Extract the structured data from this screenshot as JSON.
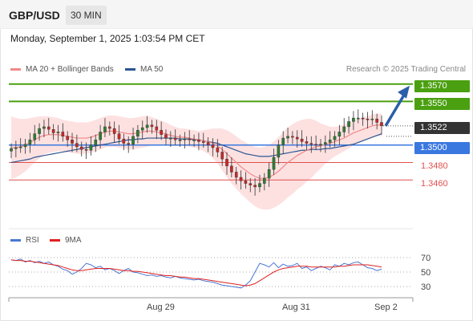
{
  "header": {
    "symbol": "GBP/USD",
    "timeframe": "30 MIN"
  },
  "timestamp": "Monday, September 1, 2025 1:03:54 PM CET",
  "legend": [
    {
      "label": "MA 20 + Bollinger Bands",
      "color": "#f08a8a"
    },
    {
      "label": "MA 50",
      "color": "#2c5691"
    }
  ],
  "credit": "Research © 2025 Trading Central",
  "levels": [
    {
      "value": "1.3570",
      "kind": "resistance",
      "color": "#4aa010"
    },
    {
      "value": "1.3550",
      "kind": "resistance",
      "color": "#4aa010"
    },
    {
      "value": "1.3522",
      "kind": "last",
      "color": "#333333"
    },
    {
      "value": "1.3500",
      "kind": "pivot",
      "color": "#3a78e0"
    },
    {
      "value": "1.3480",
      "kind": "support",
      "color": "#e05050"
    },
    {
      "value": "1.3460",
      "kind": "support",
      "color": "#e05050"
    }
  ],
  "rsi_legend": [
    {
      "label": "RSI",
      "color": "#4a77d4"
    },
    {
      "label": "9MA",
      "color": "#e02020"
    }
  ],
  "rsi_ticks": [
    "70",
    "50",
    "30"
  ],
  "xticks": [
    "Aug 29",
    "Aug 31",
    "Sep 2"
  ],
  "colors": {
    "up": "#2e7d32",
    "down": "#c62828",
    "band": "#fde1e1",
    "ma20": "#f08a8a",
    "ma50": "#2c5691"
  },
  "chart_data": {
    "type": "candlestick",
    "title": "GBP/USD",
    "timeframe": "30 MIN",
    "ylim": [
      1.3405,
      1.3578
    ],
    "close_series": [
      1.3496,
      1.3497,
      1.3498,
      1.3501,
      1.3506,
      1.3513,
      1.3519,
      1.3521,
      1.3518,
      1.3514,
      1.3515,
      1.351,
      1.3506,
      1.3502,
      1.3498,
      1.3495,
      1.3494,
      1.35,
      1.3506,
      1.3515,
      1.3521,
      1.3519,
      1.3513,
      1.3507,
      1.3502,
      1.3501,
      1.351,
      1.3517,
      1.352,
      1.3523,
      1.3521,
      1.3517,
      1.3512,
      1.3508,
      1.3508,
      1.3506,
      1.3506,
      1.3507,
      1.3506,
      1.3506,
      1.3504,
      1.3503,
      1.35,
      1.3497,
      1.3492,
      1.3484,
      1.3476,
      1.3469,
      1.3463,
      1.3459,
      1.3456,
      1.3454,
      1.3452,
      1.3456,
      1.3462,
      1.3472,
      1.3486,
      1.35,
      1.3508,
      1.351,
      1.3509,
      1.3507,
      1.3504,
      1.3502,
      1.3501,
      1.35,
      1.3501,
      1.3503,
      1.3506,
      1.351,
      1.3515,
      1.3521,
      1.3527,
      1.3531,
      1.3531,
      1.353,
      1.3529,
      1.353,
      1.3526,
      1.3522
    ],
    "ma20": [
      1.3497,
      1.3497,
      1.3498,
      1.35,
      1.3503,
      1.3506,
      1.3509,
      1.3511,
      1.3512,
      1.3512,
      1.3512,
      1.3511,
      1.351,
      1.3509,
      1.3508,
      1.3508,
      1.3508,
      1.3509,
      1.3511,
      1.3513,
      1.3515,
      1.3516,
      1.3516,
      1.3515,
      1.3514,
      1.3513,
      1.3513,
      1.3514,
      1.3515,
      1.3516,
      1.3516,
      1.3515,
      1.3514,
      1.3513,
      1.3511,
      1.351,
      1.3509,
      1.3509,
      1.3508,
      1.3507,
      1.3506,
      1.3505,
      1.3504,
      1.3502,
      1.3499,
      1.3495,
      1.349,
      1.3485,
      1.348,
      1.3475,
      1.3471,
      1.3467,
      1.3464,
      1.3462,
      1.3462,
      1.3463,
      1.3466,
      1.347,
      1.3475,
      1.348,
      1.3484,
      1.3488,
      1.3491,
      1.3494,
      1.3496,
      1.3498,
      1.3499,
      1.3501,
      1.3502,
      1.3504,
      1.3506,
      1.3508,
      1.3511,
      1.3514,
      1.3516,
      1.3518,
      1.352,
      1.3522,
      1.3523,
      1.3523
    ],
    "ma50": [
      1.348,
      1.3481,
      1.3482,
      1.3483,
      1.3484,
      1.3486,
      1.3487,
      1.3488,
      1.3489,
      1.349,
      1.3491,
      1.3492,
      1.3493,
      1.3494,
      1.3495,
      1.3496,
      1.3497,
      1.3498,
      1.3499,
      1.35,
      1.3501,
      1.3502,
      1.3503,
      1.3504,
      1.3505,
      1.3506,
      1.3506,
      1.3507,
      1.3507,
      1.3508,
      1.3508,
      1.3508,
      1.3508,
      1.3508,
      1.3508,
      1.3508,
      1.3507,
      1.3507,
      1.3507,
      1.3506,
      1.3506,
      1.3505,
      1.3504,
      1.3503,
      1.3502,
      1.35,
      1.3498,
      1.3496,
      1.3494,
      1.3492,
      1.349,
      1.3489,
      1.3488,
      1.3487,
      1.3487,
      1.3487,
      1.3488,
      1.3489,
      1.349,
      1.3491,
      1.3492,
      1.3493,
      1.3494,
      1.3494,
      1.3495,
      1.3495,
      1.3495,
      1.3496,
      1.3496,
      1.3497,
      1.3498,
      1.3499,
      1.35,
      1.3501,
      1.3503,
      1.3505,
      1.3507,
      1.3509,
      1.3511,
      1.3513
    ],
    "bb_width": [
      0.0036,
      0.0034,
      0.0032,
      0.003,
      0.0028,
      0.0026,
      0.0024,
      0.0022,
      0.0021,
      0.002,
      0.0019,
      0.0018,
      0.0018,
      0.0018,
      0.0018,
      0.0018,
      0.0018,
      0.0018,
      0.0018,
      0.0018,
      0.0018,
      0.0018,
      0.0018,
      0.0018,
      0.0018,
      0.0018,
      0.0018,
      0.0018,
      0.0018,
      0.0018,
      0.0016,
      0.0015,
      0.0014,
      0.0013,
      0.0012,
      0.0011,
      0.001,
      0.001,
      0.001,
      0.001,
      0.001,
      0.0012,
      0.0014,
      0.0017,
      0.002,
      0.0024,
      0.0027,
      0.0029,
      0.003,
      0.0031,
      0.0032,
      0.0033,
      0.0034,
      0.0035,
      0.0036,
      0.0037,
      0.0038,
      0.0039,
      0.004,
      0.004,
      0.004,
      0.0039,
      0.0038,
      0.0036,
      0.0034,
      0.003,
      0.0026,
      0.0022,
      0.0019,
      0.0017,
      0.0016,
      0.0015,
      0.0015,
      0.0014,
      0.0014,
      0.0014,
      0.0013,
      0.0013,
      0.0013,
      0.0013
    ],
    "projection": {
      "from": 1.3522,
      "to": 1.357
    },
    "rsi": {
      "ylim": [
        20,
        80
      ],
      "levels": [
        70,
        50,
        30
      ],
      "rsi": [
        67,
        66,
        68,
        64,
        66,
        63,
        65,
        62,
        64,
        60,
        58,
        54,
        52,
        47,
        50,
        55,
        62,
        60,
        56,
        58,
        53,
        55,
        52,
        48,
        52,
        55,
        50,
        49,
        47,
        45,
        46,
        44,
        45,
        43,
        42,
        44,
        42,
        41,
        40,
        39,
        40,
        38,
        37,
        36,
        34,
        32,
        31,
        30,
        29,
        28,
        32,
        38,
        50,
        62,
        60,
        57,
        63,
        56,
        61,
        58,
        59,
        62,
        55,
        57,
        52,
        55,
        58,
        56,
        53,
        60,
        58,
        62,
        60,
        63,
        64,
        60,
        56,
        55,
        52,
        54
      ],
      "ma9": [
        67,
        66,
        66,
        65,
        65,
        64,
        63,
        62,
        61,
        60,
        59,
        57,
        55,
        53,
        52,
        52,
        53,
        54,
        55,
        55,
        55,
        55,
        54,
        53,
        52,
        52,
        51,
        51,
        50,
        49,
        48,
        47,
        46,
        45,
        45,
        44,
        43,
        43,
        42,
        41,
        41,
        40,
        39,
        38,
        37,
        36,
        35,
        34,
        33,
        32,
        31,
        32,
        34,
        38,
        42,
        46,
        50,
        53,
        55,
        56,
        57,
        58,
        58,
        58,
        57,
        57,
        57,
        57,
        57,
        57,
        58,
        58,
        59,
        60,
        60,
        60,
        60,
        59,
        58,
        57
      ]
    },
    "xticks": [
      "Aug 29",
      "Aug 31",
      "Sep 2"
    ]
  }
}
